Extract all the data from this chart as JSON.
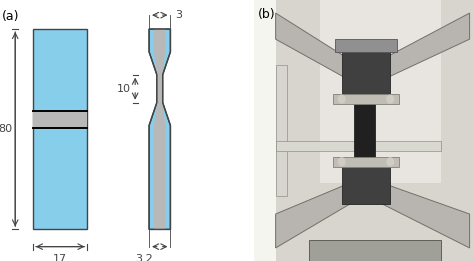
{
  "fig_width": 4.74,
  "fig_height": 2.61,
  "dpi": 100,
  "bg_color": "#ffffff",
  "label_a": "(a)",
  "label_b": "(b)",
  "cyan_color": "#87CEEB",
  "hatch_fill": "#b8b8b8",
  "outline_color": "#444444",
  "dim_color": "#444444",
  "dim_80": "80",
  "dim_17": "17",
  "dim_10": "10",
  "dim_3": "3",
  "dim_32": "3.2",
  "photo_bg": "#c8c8c0",
  "photo_wall": "#e0ddd8",
  "photo_metal_light": "#c0bdb8",
  "photo_metal_mid": "#909088",
  "photo_metal_dark": "#505050",
  "photo_black": "#1a1a1a",
  "photo_white": "#f0f0ec"
}
